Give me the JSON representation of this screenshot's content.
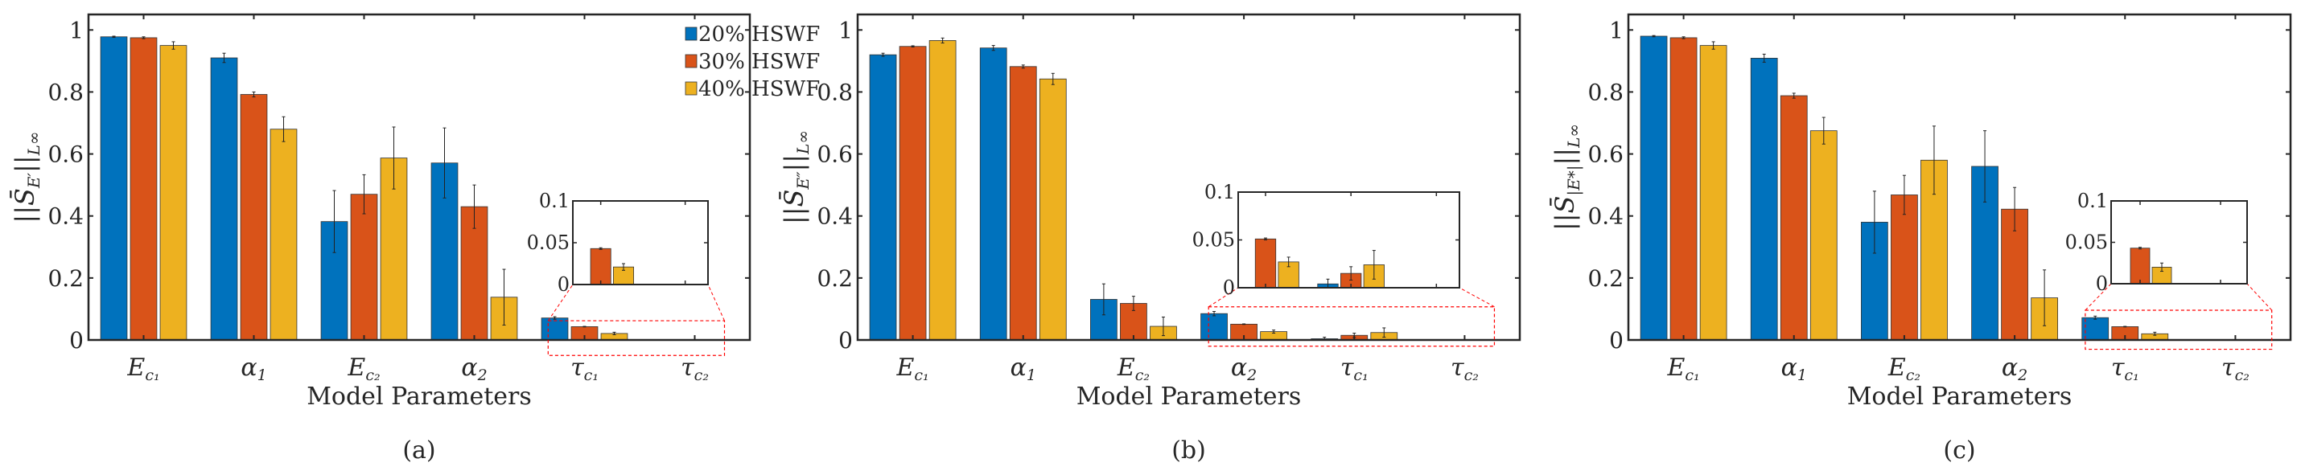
{
  "colors": {
    "20% HSWF": "#0072BD",
    "30% HSWF": "#D95319",
    "40% HSWF": "#EDB120",
    "zoom_box": "#FF0000"
  },
  "chart_data": [
    {
      "type": "bar",
      "caption": "(a)",
      "xlabel": "Model Parameters",
      "ylabel": {
        "pre": "||S̄",
        "sub": "E′",
        "post": "||",
        "sub2": "L∞"
      },
      "ylim": [
        0,
        1.05
      ],
      "yticks": [
        "0",
        "0.2",
        "0.4",
        "0.6",
        "0.8",
        "1"
      ],
      "categories": [
        {
          "base": "E",
          "sub": "c₁"
        },
        {
          "base": "α",
          "sub": "1"
        },
        {
          "base": "E",
          "sub": "c₂"
        },
        {
          "base": "α",
          "sub": "2"
        },
        {
          "base": "τ",
          "sub": "c₁"
        },
        {
          "base": "τ",
          "sub": "c₂"
        }
      ],
      "legend": {
        "position": "top-right",
        "entries": [
          "20% HSWF",
          "30% HSWF",
          "40% HSWF"
        ]
      },
      "series": [
        {
          "name": "20% HSWF",
          "values": [
            0.978,
            0.91,
            0.382,
            0.571,
            0.071,
            0
          ],
          "errors": [
            0.002,
            0.015,
            0.1,
            0.113,
            0.004,
            0
          ]
        },
        {
          "name": "30% HSWF",
          "values": [
            0.975,
            0.792,
            0.47,
            0.43,
            0.043,
            0
          ],
          "errors": [
            0.003,
            0.008,
            0.063,
            0.07,
            0.001,
            0
          ]
        },
        {
          "name": "40% HSWF",
          "values": [
            0.95,
            0.68,
            0.587,
            0.138,
            0.021,
            0
          ],
          "errors": [
            0.012,
            0.04,
            0.1,
            0.09,
            0.004,
            0
          ]
        }
      ],
      "inset": {
        "xrange": [
          4.67,
          6.27
        ],
        "ylim": [
          0,
          0.1
        ],
        "yticks": [
          "0",
          "0.05",
          "0.1"
        ],
        "zoom_region_y": [
          -0.05,
          0.062
        ]
      }
    },
    {
      "type": "bar",
      "caption": "(b)",
      "xlabel": "Model Parameters",
      "ylabel": {
        "pre": "||S̄",
        "sub": "E″",
        "post": "||",
        "sub2": "L∞"
      },
      "ylim": [
        0,
        1.05
      ],
      "yticks": [
        "0",
        "0.2",
        "0.4",
        "0.6",
        "0.8",
        "1"
      ],
      "categories": [
        {
          "base": "E",
          "sub": "c₁"
        },
        {
          "base": "α",
          "sub": "1"
        },
        {
          "base": "E",
          "sub": "c₂"
        },
        {
          "base": "α",
          "sub": "2"
        },
        {
          "base": "τ",
          "sub": "c₁"
        },
        {
          "base": "τ",
          "sub": "c₂"
        }
      ],
      "series": [
        {
          "name": "20% HSWF",
          "values": [
            0.92,
            0.942,
            0.131,
            0.085,
            0.004,
            0
          ],
          "errors": [
            0.005,
            0.008,
            0.05,
            0.007,
            0.005,
            0
          ]
        },
        {
          "name": "30% HSWF",
          "values": [
            0.947,
            0.882,
            0.118,
            0.051,
            0.015,
            0
          ],
          "errors": [
            0.002,
            0.005,
            0.023,
            0.001,
            0.007,
            0
          ]
        },
        {
          "name": "40% HSWF",
          "values": [
            0.966,
            0.842,
            0.044,
            0.027,
            0.024,
            0
          ],
          "errors": [
            0.008,
            0.018,
            0.03,
            0.005,
            0.015,
            0
          ]
        }
      ],
      "inset": {
        "xrange": [
          3.68,
          6.27
        ],
        "ylim": [
          0,
          0.1
        ],
        "yticks": [
          "0",
          "0.05",
          "0.1"
        ],
        "zoom_region_y": [
          -0.02,
          0.107
        ]
      }
    },
    {
      "type": "bar",
      "caption": "(c)",
      "xlabel": "Model Parameters",
      "ylabel": {
        "pre": "||S̄",
        "sub": "|E*|",
        "post": "||",
        "sub2": "L∞"
      },
      "ylim": [
        0,
        1.05
      ],
      "yticks": [
        "0",
        "0.2",
        "0.4",
        "0.6",
        "0.8",
        "1"
      ],
      "categories": [
        {
          "base": "E",
          "sub": "c₁"
        },
        {
          "base": "α",
          "sub": "1"
        },
        {
          "base": "E",
          "sub": "c₂"
        },
        {
          "base": "α",
          "sub": "2"
        },
        {
          "base": "τ",
          "sub": "c₁"
        },
        {
          "base": "τ",
          "sub": "c₂"
        }
      ],
      "series": [
        {
          "name": "20% HSWF",
          "values": [
            0.98,
            0.909,
            0.38,
            0.56,
            0.072,
            0
          ],
          "errors": [
            0.002,
            0.013,
            0.1,
            0.115,
            0.005,
            0
          ]
        },
        {
          "name": "30% HSWF",
          "values": [
            0.975,
            0.788,
            0.468,
            0.422,
            0.043,
            0
          ],
          "errors": [
            0.003,
            0.008,
            0.063,
            0.07,
            0.001,
            0
          ]
        },
        {
          "name": "40% HSWF",
          "values": [
            0.95,
            0.675,
            0.58,
            0.136,
            0.02,
            0
          ],
          "errors": [
            0.012,
            0.043,
            0.11,
            0.09,
            0.005,
            0
          ]
        }
      ],
      "inset": {
        "xrange": [
          4.64,
          6.33
        ],
        "ylim": [
          0,
          0.1
        ],
        "yticks": [
          "0",
          "0.05",
          "0.1"
        ],
        "zoom_region_y": [
          -0.03,
          0.096
        ]
      }
    }
  ]
}
